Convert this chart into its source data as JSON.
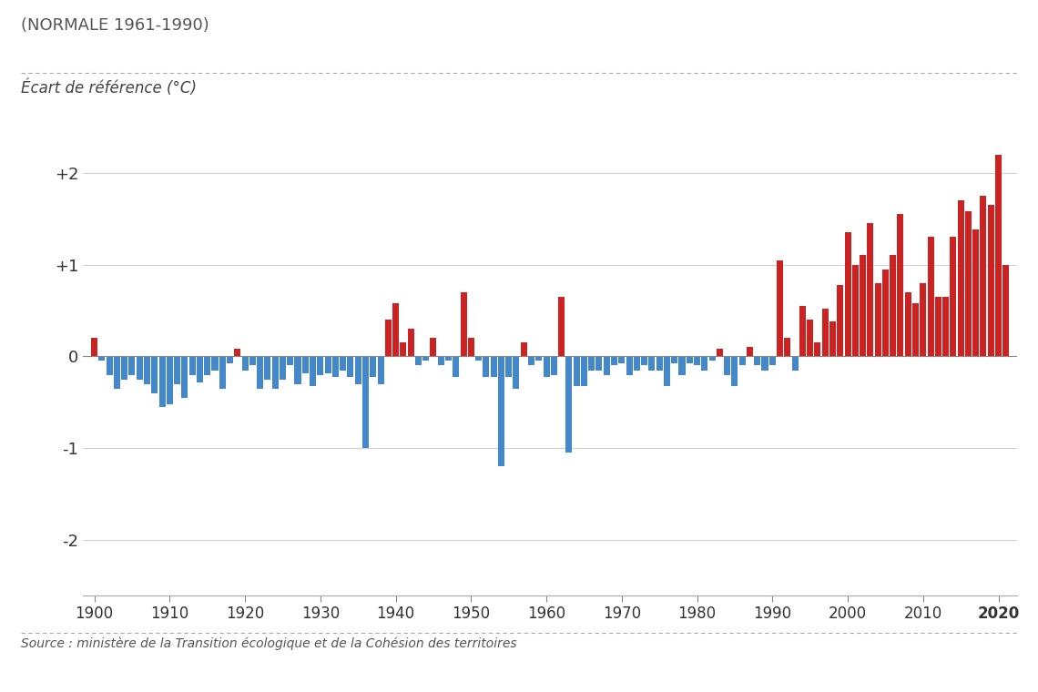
{
  "title_top": "(NORMALE 1961-1990)",
  "ylabel": "Écart de référence (°C)",
  "source": "Source : ministère de la Transition écologique et de la Cohésion des territoires",
  "ylim": [
    -2.6,
    2.6
  ],
  "yticks": [
    -2,
    -1,
    0,
    1,
    2
  ],
  "ytick_labels": [
    "-2",
    "-1",
    "0",
    "+1",
    "+2"
  ],
  "xlim": [
    1898.5,
    2022.5
  ],
  "background_color": "#ffffff",
  "grid_color": "#d0d0d0",
  "bar_color_pos": "#cc2222",
  "bar_color_neg": "#4488cc",
  "years": [
    1900,
    1901,
    1902,
    1903,
    1904,
    1905,
    1906,
    1907,
    1908,
    1909,
    1910,
    1911,
    1912,
    1913,
    1914,
    1915,
    1916,
    1917,
    1918,
    1919,
    1920,
    1921,
    1922,
    1923,
    1924,
    1925,
    1926,
    1927,
    1928,
    1929,
    1930,
    1931,
    1932,
    1933,
    1934,
    1935,
    1936,
    1937,
    1938,
    1939,
    1940,
    1941,
    1942,
    1943,
    1944,
    1945,
    1946,
    1947,
    1948,
    1949,
    1950,
    1951,
    1952,
    1953,
    1954,
    1955,
    1956,
    1957,
    1958,
    1959,
    1960,
    1961,
    1962,
    1963,
    1964,
    1965,
    1966,
    1967,
    1968,
    1969,
    1970,
    1971,
    1972,
    1973,
    1974,
    1975,
    1976,
    1977,
    1978,
    1979,
    1980,
    1981,
    1982,
    1983,
    1984,
    1985,
    1986,
    1987,
    1988,
    1989,
    1990,
    1991,
    1992,
    1993,
    1994,
    1995,
    1996,
    1997,
    1998,
    1999,
    2000,
    2001,
    2002,
    2003,
    2004,
    2005,
    2006,
    2007,
    2008,
    2009,
    2010,
    2011,
    2012,
    2013,
    2014,
    2015,
    2016,
    2017,
    2018,
    2019,
    2020,
    2021
  ],
  "values": [
    0.2,
    -0.05,
    -0.2,
    -0.35,
    -0.25,
    -0.2,
    -0.25,
    -0.3,
    -0.4,
    -0.55,
    -0.52,
    -0.3,
    -0.45,
    -0.2,
    -0.28,
    -0.2,
    -0.15,
    -0.35,
    -0.08,
    0.08,
    -0.15,
    -0.1,
    -0.35,
    -0.25,
    -0.35,
    -0.25,
    -0.1,
    -0.3,
    -0.18,
    -0.32,
    -0.2,
    -0.18,
    -0.22,
    -0.15,
    -0.22,
    -0.3,
    -1.0,
    -0.22,
    -0.3,
    0.4,
    0.58,
    0.15,
    0.3,
    -0.1,
    -0.05,
    0.2,
    -0.1,
    -0.05,
    -0.22,
    0.7,
    0.2,
    -0.05,
    -0.22,
    -0.22,
    -1.2,
    -0.22,
    -0.35,
    0.15,
    -0.1,
    -0.05,
    -0.22,
    -0.2,
    0.65,
    -1.05,
    -0.32,
    -0.32,
    -0.15,
    -0.15,
    -0.2,
    -0.1,
    -0.08,
    -0.2,
    -0.15,
    -0.1,
    -0.15,
    -0.15,
    -0.32,
    -0.08,
    -0.2,
    -0.08,
    -0.1,
    -0.15,
    -0.05,
    0.08,
    -0.2,
    -0.32,
    -0.1,
    0.1,
    -0.1,
    -0.15,
    -0.1,
    1.05,
    0.2,
    -0.15,
    0.55,
    0.4,
    0.15,
    0.52,
    0.38,
    0.78,
    1.35,
    1.0,
    1.1,
    1.45,
    0.8,
    0.95,
    1.1,
    1.55,
    0.7,
    0.58,
    0.8,
    1.3,
    0.65,
    0.65,
    1.3,
    1.7,
    1.58,
    1.38,
    1.75,
    1.65,
    2.2,
    1.0
  ]
}
